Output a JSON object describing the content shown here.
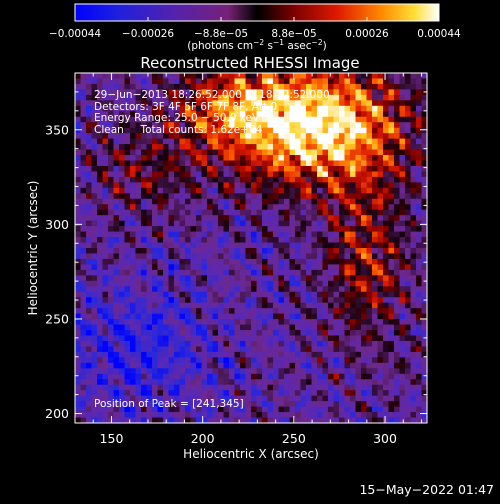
{
  "chart_data": {
    "type": "heatmap",
    "title": "Reconstructed RHESSI Image",
    "xlabel": "Heliocentric X (arcsec)",
    "ylabel": "Heliocentric Y (arcsec)",
    "xlim": [
      130,
      323
    ],
    "ylim": [
      195,
      380
    ],
    "x_ticks": [
      "150",
      "200",
      "250",
      "300"
    ],
    "y_ticks": [
      "200",
      "250",
      "300",
      "350"
    ],
    "colorbar": {
      "range": [
        -0.00044,
        0.00044
      ],
      "tick_labels": [
        "−0.00044",
        "−0.00026",
        "−8.8e−05",
        "8.8e−05",
        "0.00026",
        "0.00044"
      ],
      "unit_line": [
        "(photons cm",
        "−2",
        " s",
        "−1",
        " asec",
        "−2",
        ")"
      ]
    },
    "annotations": {
      "time_range": "29−Jun−2013 18:26:52.000 to 18:32:52.000",
      "detectors": "Detectors: 3F 4F 5F 6F 7F 8F, Att 0",
      "energy": "Energy Range: 25.0 − 50.0 keV",
      "clean": "Clean     Total counts: 1.62e+04",
      "peak": "Position of Peak = [241,345]"
    },
    "timestamp": "15−May−2022 01:47",
    "peak_position": [
      241,
      345
    ],
    "grid": false,
    "description_of_field": "Bright emission concentrated in upper-right (x 210–320, y 300–380); ridge of moderate emission along x≈260–300 down to y≈250; lower-left region near-zero/negative (purple-blue)."
  },
  "colors": {
    "background": "#000000",
    "foreground": "#ffffff"
  }
}
